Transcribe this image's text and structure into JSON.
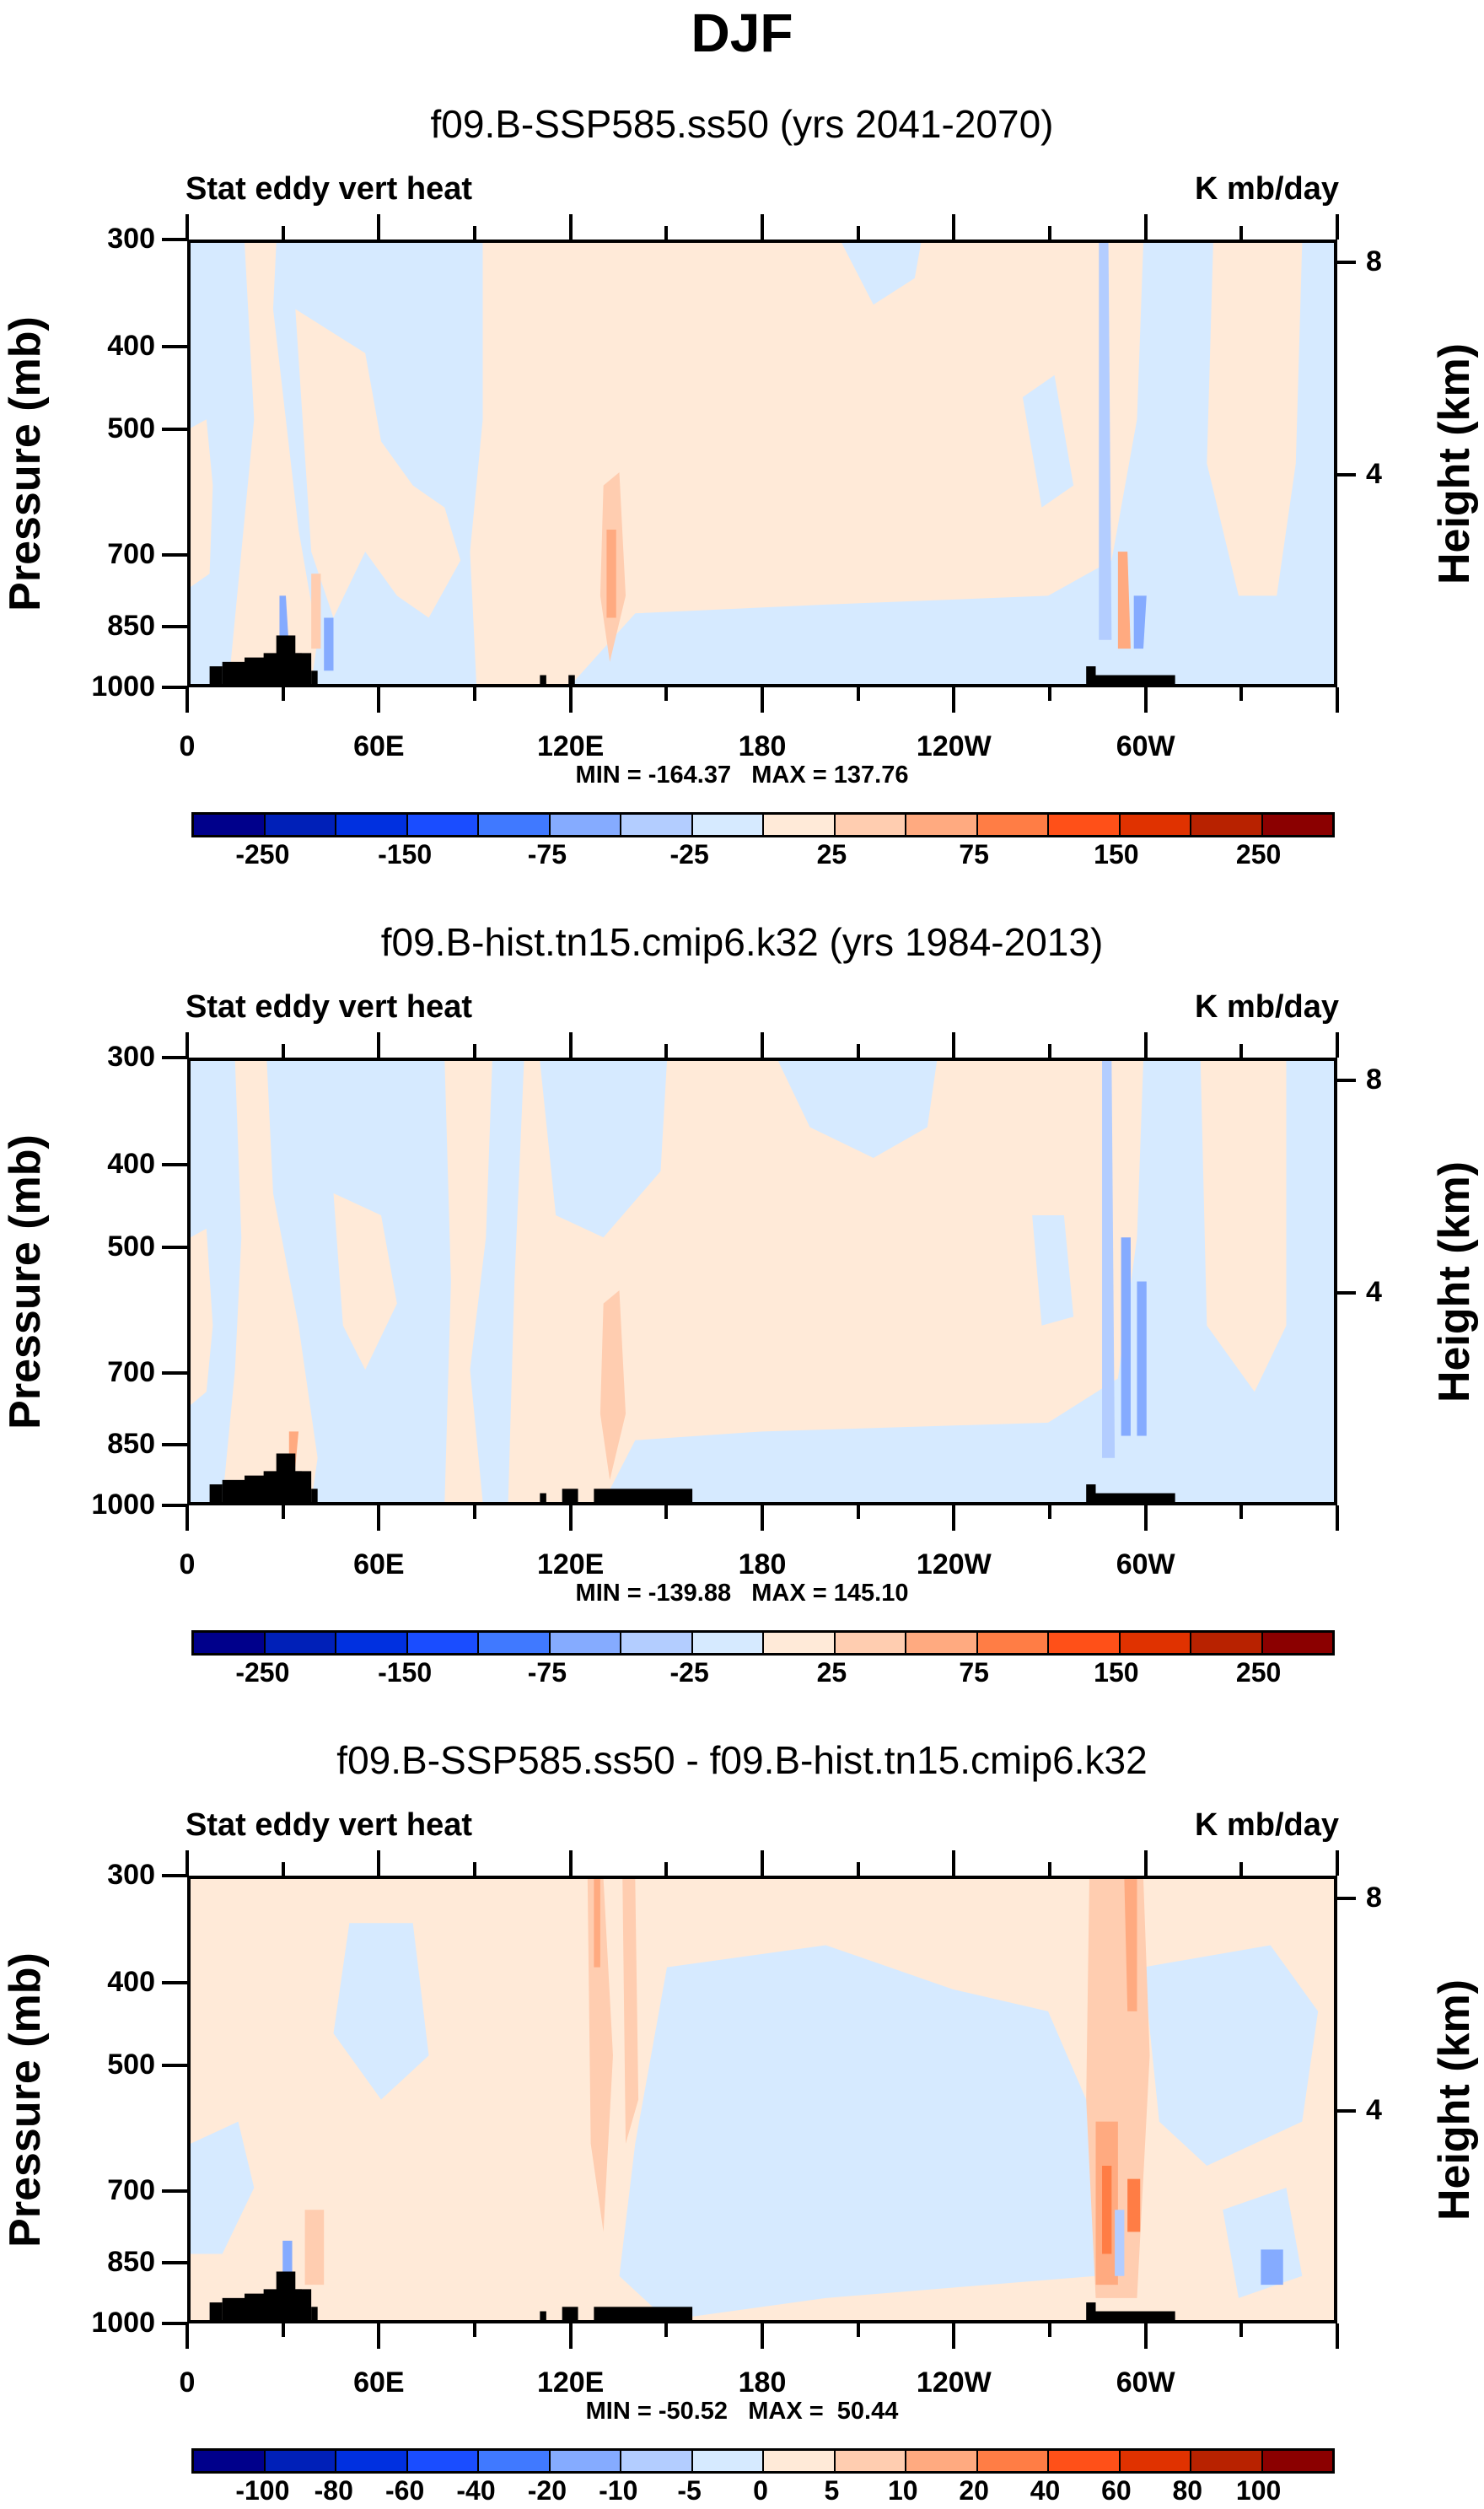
{
  "title": "DJF",
  "chart_data": [
    {
      "type": "heatmap",
      "title": "f09.B-SSP585.ss50 (yrs 2041-2070)",
      "left_label": "Stat eddy vert heat",
      "units": "K mb/day",
      "ylabel": "Pressure (mb)",
      "ylabel_right": "Height (km)",
      "yticks": [
        300,
        400,
        500,
        700,
        850,
        1000
      ],
      "yticks_right": [
        4,
        8
      ],
      "xticks": [
        "0",
        "60E",
        "120E",
        "180",
        "120W",
        "60W"
      ],
      "minmax": "MIN = -164.37   MAX = 137.76",
      "colorbar_levels": [
        -250,
        -200,
        -150,
        -100,
        -75,
        -50,
        -25,
        0,
        25,
        50,
        75,
        100,
        150,
        200,
        250
      ],
      "colorbar_labels": [
        "-250",
        "-150",
        "-75",
        "-25",
        "25",
        "75",
        "150",
        "250"
      ],
      "colorbar_label_index": [
        0,
        2,
        4,
        6,
        8,
        10,
        12,
        14
      ],
      "min": -164.37,
      "max": 137.76
    },
    {
      "type": "heatmap",
      "title": "f09.B-hist.tn15.cmip6.k32 (yrs 1984-2013)",
      "left_label": "Stat eddy vert heat",
      "units": "K mb/day",
      "ylabel": "Pressure (mb)",
      "ylabel_right": "Height (km)",
      "yticks": [
        300,
        400,
        500,
        700,
        850,
        1000
      ],
      "yticks_right": [
        4,
        8
      ],
      "xticks": [
        "0",
        "60E",
        "120E",
        "180",
        "120W",
        "60W"
      ],
      "minmax": "MIN = -139.88   MAX = 145.10",
      "colorbar_levels": [
        -250,
        -200,
        -150,
        -100,
        -75,
        -50,
        -25,
        0,
        25,
        50,
        75,
        100,
        150,
        200,
        250
      ],
      "colorbar_labels": [
        "-250",
        "-150",
        "-75",
        "-25",
        "25",
        "75",
        "150",
        "250"
      ],
      "colorbar_label_index": [
        0,
        2,
        4,
        6,
        8,
        10,
        12,
        14
      ],
      "min": -139.88,
      "max": 145.1
    },
    {
      "type": "heatmap",
      "title": "f09.B-SSP585.ss50 - f09.B-hist.tn15.cmip6.k32",
      "left_label": "Stat eddy vert heat",
      "units": "K mb/day",
      "ylabel": "Pressure (mb)",
      "ylabel_right": "Height (km)",
      "yticks": [
        300,
        400,
        500,
        700,
        850,
        1000
      ],
      "yticks_right": [
        4,
        8
      ],
      "xticks": [
        "0",
        "60E",
        "120E",
        "180",
        "120W",
        "60W"
      ],
      "minmax": "MIN = -50.52   MAX =  50.44",
      "colorbar_levels": [
        -100,
        -80,
        -60,
        -40,
        -20,
        -10,
        -5,
        0,
        5,
        10,
        20,
        40,
        60,
        80,
        100
      ],
      "colorbar_labels": [
        "-100",
        "-80",
        "-60",
        "-40",
        "-20",
        "-10",
        "-5",
        "0",
        "5",
        "10",
        "20",
        "40",
        "60",
        "80",
        "100"
      ],
      "colorbar_label_index": [
        0,
        1,
        2,
        3,
        4,
        5,
        6,
        7,
        8,
        9,
        10,
        11,
        12,
        13,
        14
      ],
      "min": -50.52,
      "max": 50.44
    }
  ],
  "colors": {
    "palette": [
      "#00008b",
      "#0020b8",
      "#0030e0",
      "#1a4dff",
      "#4079ff",
      "#85abff",
      "#b3cdff",
      "#d6eaff",
      "#ffead8",
      "#ffcdb0",
      "#ffaa80",
      "#ff7d45",
      "#ff5018",
      "#e03200",
      "#b82200",
      "#8b0000"
    ],
    "topography": "#000000"
  }
}
